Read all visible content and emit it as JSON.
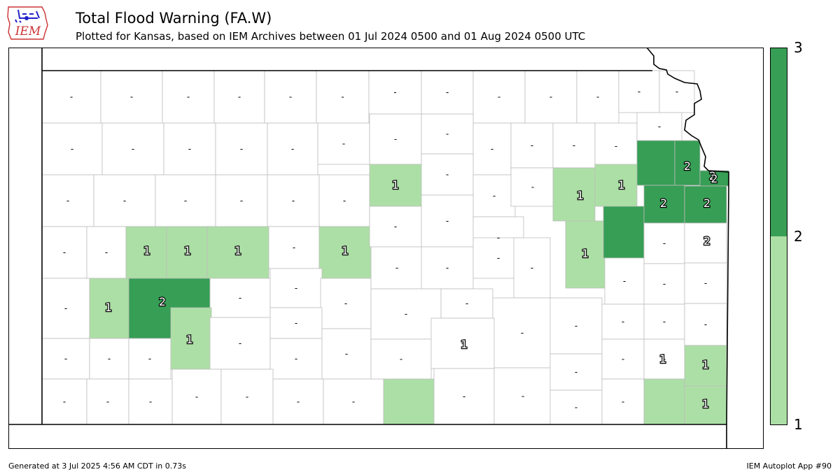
{
  "header": {
    "logo_text": "IEM",
    "title": "Total Flood Warning (FA.W)",
    "subtitle": "Plotted for Kansas, based on IEM Archives  between 01 Jul 2024 0500 and 01 Aug 2024 0500 UTC"
  },
  "colors": {
    "level1": "#acdfa5",
    "level2": "#379e55",
    "county_border": "#bdbdbd",
    "state_border": "#000000"
  },
  "colorbar": {
    "ticks": [
      "3",
      "2",
      "1"
    ],
    "bins": [
      {
        "range": "1-2",
        "color": "#acdfa5"
      },
      {
        "range": "2-3",
        "color": "#379e55"
      }
    ]
  },
  "map": {
    "missing_label": "-",
    "counties": [
      {
        "id": "cheyenne",
        "count": null
      },
      {
        "id": "rawlins",
        "count": null
      },
      {
        "id": "decatur",
        "count": null
      },
      {
        "id": "norton",
        "count": null
      },
      {
        "id": "phillips",
        "count": null
      },
      {
        "id": "smith",
        "count": null
      },
      {
        "id": "jewell",
        "count": null
      },
      {
        "id": "republic",
        "count": null
      },
      {
        "id": "washington",
        "count": null
      },
      {
        "id": "marshall",
        "count": null
      },
      {
        "id": "nemaha",
        "count": null
      },
      {
        "id": "brown",
        "count": null
      },
      {
        "id": "doniphan",
        "count": null
      },
      {
        "id": "sherman",
        "count": null
      },
      {
        "id": "thomas",
        "count": null
      },
      {
        "id": "sheridan",
        "count": null
      },
      {
        "id": "graham",
        "count": null
      },
      {
        "id": "rooks",
        "count": null
      },
      {
        "id": "osborne",
        "count": null
      },
      {
        "id": "mitchell",
        "count": null
      },
      {
        "id": "cloud",
        "count": null
      },
      {
        "id": "clay",
        "count": null
      },
      {
        "id": "riley",
        "count": null
      },
      {
        "id": "pottawatomie",
        "count": null
      },
      {
        "id": "jackson",
        "count": null
      },
      {
        "id": "atchison",
        "count": null
      },
      {
        "id": "wallace",
        "count": null
      },
      {
        "id": "logan",
        "count": null
      },
      {
        "id": "gove",
        "count": null
      },
      {
        "id": "trego",
        "count": null
      },
      {
        "id": "ellis",
        "count": null
      },
      {
        "id": "russell",
        "count": null
      },
      {
        "id": "lincoln",
        "count": 1
      },
      {
        "id": "ottawa",
        "count": null
      },
      {
        "id": "dickinson",
        "count": null
      },
      {
        "id": "geary",
        "count": null
      },
      {
        "id": "wabaunsee",
        "count": 1
      },
      {
        "id": "shawnee",
        "count": 1
      },
      {
        "id": "jefferson",
        "count": 2
      },
      {
        "id": "leavenworth",
        "count": 2
      },
      {
        "id": "wyandotte",
        "count": 2
      },
      {
        "id": "greeley",
        "count": null
      },
      {
        "id": "wichita",
        "count": null
      },
      {
        "id": "scott",
        "count": 1
      },
      {
        "id": "lane",
        "count": 1
      },
      {
        "id": "ness",
        "count": 1
      },
      {
        "id": "rush",
        "count": null
      },
      {
        "id": "barton",
        "count": 1
      },
      {
        "id": "ellsworth",
        "count": null
      },
      {
        "id": "saline",
        "count": null
      },
      {
        "id": "morris",
        "count": null
      },
      {
        "id": "lyon",
        "count": 1
      },
      {
        "id": "osage",
        "count": 2
      },
      {
        "id": "douglas",
        "count": 2
      },
      {
        "id": "johnson",
        "count": 2
      },
      {
        "id": "hamilton",
        "count": null
      },
      {
        "id": "kearny",
        "count": 1
      },
      {
        "id": "finney",
        "count": 2
      },
      {
        "id": "hodgeman",
        "count": null
      },
      {
        "id": "pawnee",
        "count": null
      },
      {
        "id": "stafford",
        "count": null
      },
      {
        "id": "rice",
        "count": null
      },
      {
        "id": "mcpherson",
        "count": null
      },
      {
        "id": "marion",
        "count": null
      },
      {
        "id": "chase",
        "count": null
      },
      {
        "id": "coffey",
        "count": null
      },
      {
        "id": "franklin",
        "count": null
      },
      {
        "id": "miami",
        "count": null
      },
      {
        "id": "stanton",
        "count": null
      },
      {
        "id": "grant",
        "count": null
      },
      {
        "id": "haskell",
        "count": null
      },
      {
        "id": "gray",
        "count": 1
      },
      {
        "id": "ford",
        "count": null
      },
      {
        "id": "edwards",
        "count": null
      },
      {
        "id": "kiowa",
        "count": null
      },
      {
        "id": "pratt",
        "count": null
      },
      {
        "id": "reno",
        "count": null
      },
      {
        "id": "harvey",
        "count": null
      },
      {
        "id": "butler",
        "count": null
      },
      {
        "id": "greenwood",
        "count": null
      },
      {
        "id": "woodson",
        "count": null
      },
      {
        "id": "anderson",
        "count": null
      },
      {
        "id": "linn",
        "count": null
      },
      {
        "id": "morton",
        "count": null
      },
      {
        "id": "stevens",
        "count": null
      },
      {
        "id": "seward",
        "count": null
      },
      {
        "id": "meade",
        "count": null
      },
      {
        "id": "clark",
        "count": null
      },
      {
        "id": "comanche",
        "count": null
      },
      {
        "id": "barber",
        "count": null
      },
      {
        "id": "kingman",
        "count": null
      },
      {
        "id": "sedgwick",
        "count": null
      },
      {
        "id": "harper",
        "count": 1
      },
      {
        "id": "sumner",
        "count": null
      },
      {
        "id": "cowley",
        "count": null
      },
      {
        "id": "elk",
        "count": null
      },
      {
        "id": "wilson",
        "count": null
      },
      {
        "id": "allen",
        "count": null
      },
      {
        "id": "neosho",
        "count": null
      },
      {
        "id": "bourbon",
        "count": null
      },
      {
        "id": "chautauqua",
        "count": null
      },
      {
        "id": "montgomery",
        "count": null
      },
      {
        "id": "labette",
        "count": 1
      },
      {
        "id": "crawford",
        "count": 1
      },
      {
        "id": "cherokee",
        "count": 1
      }
    ]
  },
  "footer": {
    "generated": "Generated at 3 Jul 2025 4:56 AM CDT in 0.73s",
    "app": "IEM Autoplot App #90"
  }
}
